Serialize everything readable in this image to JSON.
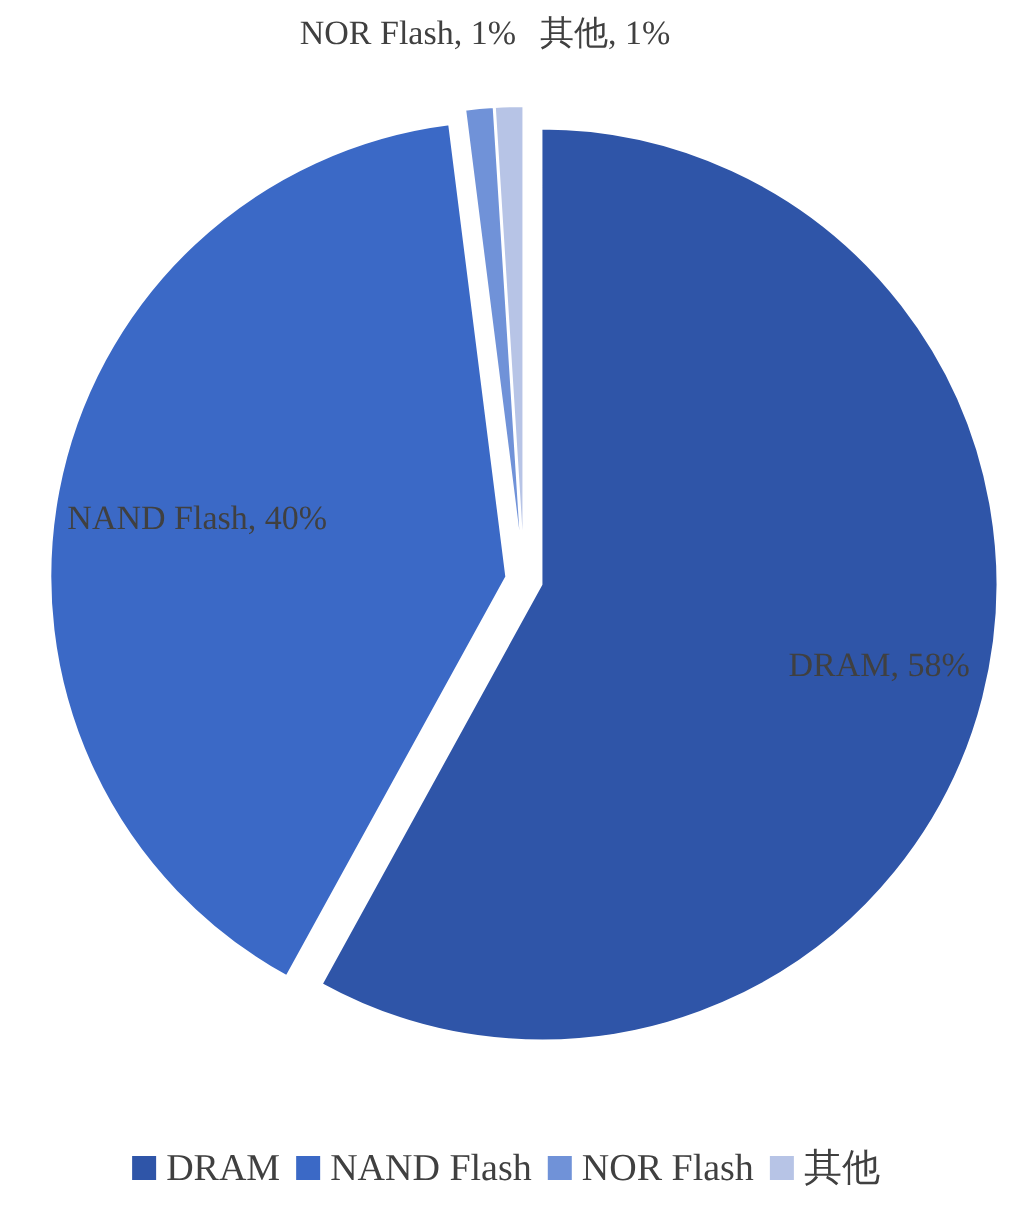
{
  "chart_data": {
    "type": "pie",
    "categories": [
      "DRAM",
      "NAND Flash",
      "NOR Flash",
      "其他"
    ],
    "values": [
      58,
      40,
      1,
      1
    ],
    "colors": [
      "#2f55a8",
      "#3b69c6",
      "#7092d8",
      "#b7c4e6"
    ],
    "value_labels": [
      "DRAM, 58%",
      "NAND Flash, 40%",
      "NOR Flash, 1%",
      "其他, 1%"
    ],
    "legend": "bottom"
  }
}
